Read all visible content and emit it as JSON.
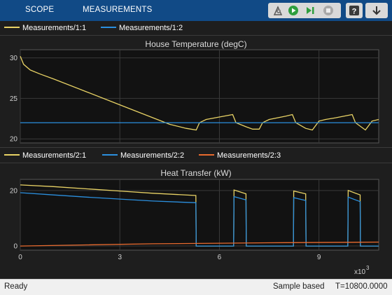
{
  "toolbar": {
    "tabs": [
      "SCOPE",
      "MEASUREMENTS"
    ],
    "icons": [
      "settings-icon",
      "run-icon",
      "step-forward-icon",
      "stop-icon",
      "help-icon",
      "dock-icon"
    ]
  },
  "colors": {
    "yellow": "#e8d265",
    "blue": "#2b8fde",
    "orange": "#e86a2e",
    "axes_bg": "#121212",
    "grid": "#3a3a3a",
    "tick": "#d0d0d0"
  },
  "plot1": {
    "legend": [
      {
        "label": "Measurements/1:1",
        "color": "#e8d265"
      },
      {
        "label": "Measurements/1:2",
        "color": "#2b8fde"
      }
    ],
    "title": "House Temperature (degC)",
    "y_ticks": [
      "20",
      "25",
      "30"
    ]
  },
  "plot2": {
    "legend": [
      {
        "label": "Measurements/2:1",
        "color": "#e8d265"
      },
      {
        "label": "Measurements/2:2",
        "color": "#2b8fde"
      },
      {
        "label": "Measurements/2:3",
        "color": "#e86a2e"
      }
    ],
    "title": "Heat Transfer (kW)",
    "y_ticks": [
      "0",
      "20"
    ]
  },
  "x_axis": {
    "ticks": [
      "0",
      "3",
      "6",
      "9"
    ],
    "exponent_label": "x10",
    "exponent_power": "3"
  },
  "status": {
    "left": "Ready",
    "mode": "Sample based",
    "time": "T=10800.0000"
  },
  "chart_data": [
    {
      "type": "line",
      "title": "House Temperature (degC)",
      "xlim": [
        0,
        10800
      ],
      "ylim": [
        19.5,
        31
      ],
      "series": [
        {
          "name": "Measurements/1:1",
          "x": [
            0,
            100,
            300,
            600,
            1000,
            2000,
            3000,
            4000,
            4500,
            5000,
            5300,
            5400,
            5600,
            6000,
            6400,
            6500,
            6800,
            7000,
            7200,
            7300,
            7500,
            8000,
            8200,
            8300,
            8600,
            8800,
            9000,
            9200,
            9500,
            10000,
            10100,
            10400,
            10600,
            10800
          ],
          "y": [
            30.2,
            29.2,
            28.5,
            28.0,
            27.4,
            25.8,
            24.2,
            22.6,
            21.8,
            21.3,
            21.1,
            22.0,
            22.4,
            22.7,
            23.0,
            22.0,
            21.5,
            21.2,
            21.2,
            22.0,
            22.4,
            22.8,
            23.0,
            22.0,
            21.3,
            21.1,
            22.2,
            22.4,
            22.6,
            23.0,
            22.0,
            21.1,
            22.2,
            22.4
          ]
        },
        {
          "name": "Measurements/1:2",
          "x": [
            0,
            10800
          ],
          "y": [
            22,
            22
          ]
        }
      ]
    },
    {
      "type": "line",
      "title": "Heat Transfer (kW)",
      "xlim": [
        0,
        10800
      ],
      "ylim": [
        -1.5,
        24
      ],
      "series": [
        {
          "name": "Measurements/2:1",
          "x": [
            0,
            1000,
            2000,
            3000,
            4000,
            5290,
            5300,
            5310,
            6430,
            6440,
            6800,
            6810,
            8230,
            8240,
            8600,
            8610,
            9870,
            9880,
            10240,
            10250,
            10800
          ],
          "y": [
            22,
            21.4,
            20.6,
            19.8,
            19.0,
            18.2,
            0,
            0,
            0,
            20.2,
            18.8,
            0,
            0,
            19.8,
            18.8,
            0,
            0,
            20.0,
            18.4,
            0,
            0
          ]
        },
        {
          "name": "Measurements/2:2",
          "x": [
            0,
            1000,
            2000,
            3000,
            4000,
            5290,
            5300,
            5310,
            6430,
            6440,
            6800,
            6810,
            8230,
            8240,
            8600,
            8610,
            9870,
            9880,
            10240,
            10250,
            10800
          ],
          "y": [
            19.2,
            18.4,
            17.6,
            16.9,
            16.2,
            15.6,
            0,
            0,
            0,
            17.8,
            16.6,
            0,
            0,
            17.4,
            16.4,
            0,
            0,
            17.6,
            16.0,
            0,
            0
          ]
        },
        {
          "name": "Measurements/2:3",
          "x": [
            0,
            2000,
            4000,
            6000,
            8000,
            10800
          ],
          "y": [
            0,
            0.4,
            0.8,
            1.0,
            1.2,
            1.4
          ]
        }
      ]
    }
  ]
}
